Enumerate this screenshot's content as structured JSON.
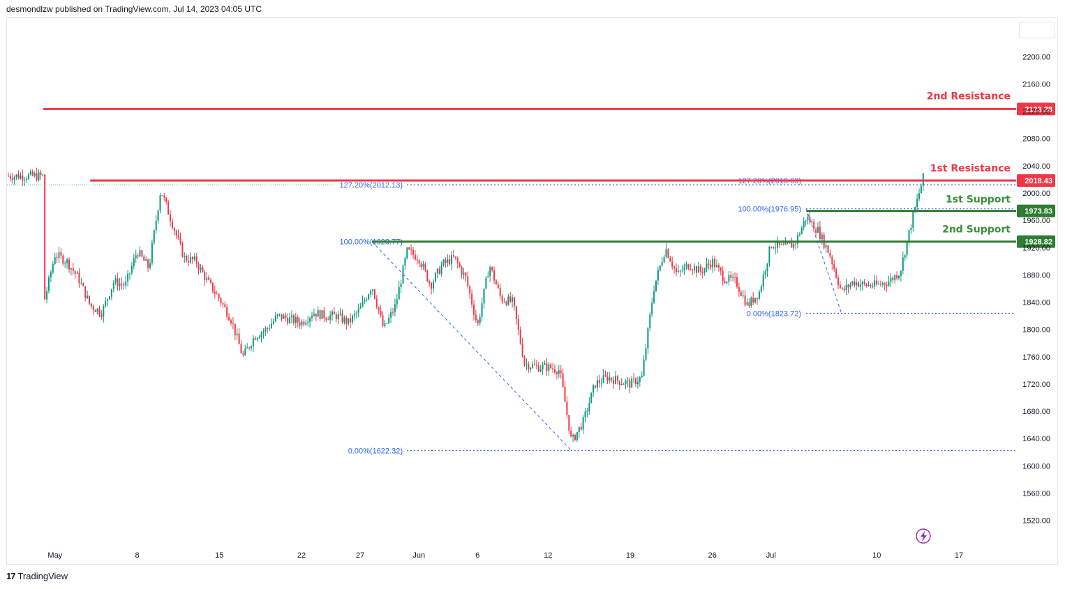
{
  "header": {
    "publisher_text": "desmondlzw published on TradingView.com, Jul 14, 2023 04:05 UTC"
  },
  "footer": {
    "logo_mark": "17",
    "brand": "TradingView"
  },
  "colors": {
    "resistance": "#f23645",
    "support": "#2e7d32",
    "support_text": "#388e3c",
    "fib": "#2962ff",
    "candle_up": "#089981",
    "candle_down": "#f23645",
    "lightning": "#9c27b0"
  },
  "chart_data": {
    "type": "candlestick",
    "symbol_note": "",
    "y_axis": {
      "ticks": [
        "2200.00",
        "2160.00",
        "2120.00",
        "2080.00",
        "2040.00",
        "2000.00",
        "1960.00",
        "1920.00",
        "1880.00",
        "1840.00",
        "1800.00",
        "1760.00",
        "1720.00",
        "1680.00",
        "1640.00",
        "1600.00",
        "1560.00",
        "1520.00"
      ],
      "range": [
        1520,
        2200
      ],
      "position": "right"
    },
    "x_axis": {
      "ticks": [
        {
          "label": "May",
          "date": "2023-05-01"
        },
        {
          "label": "8",
          "date": "2023-05-08"
        },
        {
          "label": "15",
          "date": "2023-05-15"
        },
        {
          "label": "22",
          "date": "2023-05-22"
        },
        {
          "label": "27",
          "date": "2023-05-27"
        },
        {
          "label": "Jun",
          "date": "2023-06-01"
        },
        {
          "label": "6",
          "date": "2023-06-06"
        },
        {
          "label": "12",
          "date": "2023-06-12"
        },
        {
          "label": "19",
          "date": "2023-06-19"
        },
        {
          "label": "26",
          "date": "2023-06-26"
        },
        {
          "label": "Jul",
          "date": "2023-07-01"
        },
        {
          "label": "10",
          "date": "2023-07-10"
        },
        {
          "label": "17",
          "date": "2023-07-17"
        }
      ]
    },
    "levels": [
      {
        "name": "2nd Resistance",
        "value": 2123.28,
        "badge": "2123.28",
        "kind": "resistance",
        "start_date": "2023-04-30"
      },
      {
        "name": "1st Resistance",
        "value": 2018.43,
        "badge": "2018.43",
        "kind": "resistance",
        "start_date": "2023-05-04"
      },
      {
        "name": "1st Support",
        "value": 1973.83,
        "badge": "1973.83",
        "kind": "support",
        "start_date": "2023-07-04"
      },
      {
        "name": "2nd Support",
        "value": 1928.82,
        "badge": "1928.82",
        "kind": "support",
        "start_date": "2023-05-28"
      }
    ],
    "fib_labels": [
      {
        "text": "127.20%(2012.13)",
        "value": 2012.13
      },
      {
        "text": "100.00%(1928.77)",
        "value": 1928.77
      },
      {
        "text": "0.00%(1622.32)",
        "value": 1622.32
      },
      {
        "text": "127.20%(2018.63)",
        "value": 2018.63
      },
      {
        "text": "100.00%(1976.95)",
        "value": 1976.95
      },
      {
        "text": "0.00%(1823.72)",
        "value": 1823.72
      }
    ],
    "fib_diagonals": [
      {
        "from_date": "2023-05-28",
        "from_value": 1928.77,
        "to_date": "2023-06-14",
        "to_value": 1622.32
      },
      {
        "from_date": "2023-07-04",
        "from_value": 1976.95,
        "to_date": "2023-07-07",
        "to_value": 1823.72
      }
    ],
    "price_path": [
      {
        "date": "2023-04-30",
        "value": 1835
      },
      {
        "date": "2023-05-01",
        "value": 1910
      },
      {
        "date": "2023-05-02",
        "value": 1900
      },
      {
        "date": "2023-05-03",
        "value": 1875
      },
      {
        "date": "2023-05-04",
        "value": 1835
      },
      {
        "date": "2023-05-05",
        "value": 1825
      },
      {
        "date": "2023-05-06",
        "value": 1870
      },
      {
        "date": "2023-05-07",
        "value": 1865
      },
      {
        "date": "2023-05-08",
        "value": 1915
      },
      {
        "date": "2023-05-09",
        "value": 1890
      },
      {
        "date": "2023-05-10",
        "value": 2005
      },
      {
        "date": "2023-05-11",
        "value": 1955
      },
      {
        "date": "2023-05-12",
        "value": 1905
      },
      {
        "date": "2023-05-13",
        "value": 1900
      },
      {
        "date": "2023-05-14",
        "value": 1870
      },
      {
        "date": "2023-05-15",
        "value": 1845
      },
      {
        "date": "2023-05-16",
        "value": 1815
      },
      {
        "date": "2023-05-17",
        "value": 1760
      },
      {
        "date": "2023-05-18",
        "value": 1790
      },
      {
        "date": "2023-05-19",
        "value": 1800
      },
      {
        "date": "2023-05-20",
        "value": 1820
      },
      {
        "date": "2023-05-21",
        "value": 1815
      },
      {
        "date": "2023-05-22",
        "value": 1810
      },
      {
        "date": "2023-05-23",
        "value": 1825
      },
      {
        "date": "2023-05-24",
        "value": 1820
      },
      {
        "date": "2023-05-25",
        "value": 1820
      },
      {
        "date": "2023-05-26",
        "value": 1810
      },
      {
        "date": "2023-05-27",
        "value": 1830
      },
      {
        "date": "2023-05-28",
        "value": 1865
      },
      {
        "date": "2023-05-29",
        "value": 1800
      },
      {
        "date": "2023-05-30",
        "value": 1835
      },
      {
        "date": "2023-05-31",
        "value": 1915
      },
      {
        "date": "2023-06-01",
        "value": 1905
      },
      {
        "date": "2023-06-02",
        "value": 1865
      },
      {
        "date": "2023-06-03",
        "value": 1895
      },
      {
        "date": "2023-06-04",
        "value": 1905
      },
      {
        "date": "2023-06-05",
        "value": 1875
      },
      {
        "date": "2023-06-06",
        "value": 1805
      },
      {
        "date": "2023-06-07",
        "value": 1895
      },
      {
        "date": "2023-06-08",
        "value": 1845
      },
      {
        "date": "2023-06-09",
        "value": 1840
      },
      {
        "date": "2023-06-10",
        "value": 1750
      },
      {
        "date": "2023-06-11",
        "value": 1745
      },
      {
        "date": "2023-06-12",
        "value": 1745
      },
      {
        "date": "2023-06-13",
        "value": 1740
      },
      {
        "date": "2023-06-14",
        "value": 1635
      },
      {
        "date": "2023-06-15",
        "value": 1665
      },
      {
        "date": "2023-06-16",
        "value": 1720
      },
      {
        "date": "2023-06-17",
        "value": 1730
      },
      {
        "date": "2023-06-18",
        "value": 1725
      },
      {
        "date": "2023-06-19",
        "value": 1720
      },
      {
        "date": "2023-06-20",
        "value": 1730
      },
      {
        "date": "2023-06-21",
        "value": 1860
      },
      {
        "date": "2023-06-22",
        "value": 1920
      },
      {
        "date": "2023-06-23",
        "value": 1880
      },
      {
        "date": "2023-06-24",
        "value": 1895
      },
      {
        "date": "2023-06-25",
        "value": 1885
      },
      {
        "date": "2023-06-26",
        "value": 1900
      },
      {
        "date": "2023-06-27",
        "value": 1875
      },
      {
        "date": "2023-06-28",
        "value": 1870
      },
      {
        "date": "2023-06-29",
        "value": 1835
      },
      {
        "date": "2023-06-30",
        "value": 1855
      },
      {
        "date": "2023-07-01",
        "value": 1925
      },
      {
        "date": "2023-07-02",
        "value": 1920
      },
      {
        "date": "2023-07-03",
        "value": 1925
      },
      {
        "date": "2023-07-04",
        "value": 1965
      },
      {
        "date": "2023-07-05",
        "value": 1945
      },
      {
        "date": "2023-07-06",
        "value": 1910
      },
      {
        "date": "2023-07-07",
        "value": 1855
      },
      {
        "date": "2023-07-08",
        "value": 1870
      },
      {
        "date": "2023-07-09",
        "value": 1865
      },
      {
        "date": "2023-07-10",
        "value": 1865
      },
      {
        "date": "2023-07-11",
        "value": 1870
      },
      {
        "date": "2023-07-12",
        "value": 1885
      },
      {
        "date": "2023-07-13",
        "value": 1960
      },
      {
        "date": "2023-07-14",
        "value": 2025
      }
    ]
  }
}
